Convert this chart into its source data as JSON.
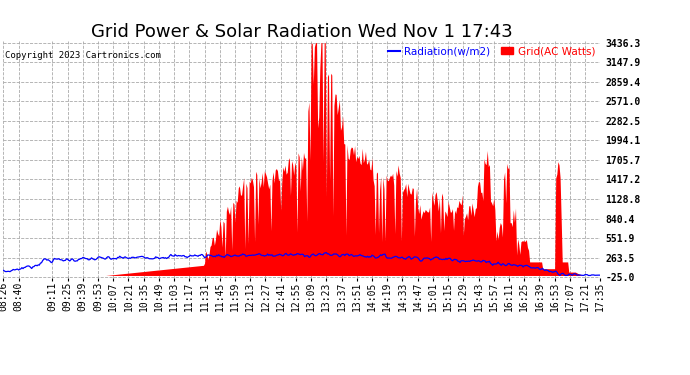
{
  "title": "Grid Power & Solar Radiation Wed Nov 1 17:43",
  "copyright": "Copyright 2023 Cartronics.com",
  "legend_radiation": "Radiation(w/m2)",
  "legend_grid": "Grid(AC Watts)",
  "yticks": [
    3436.3,
    3147.9,
    2859.4,
    2571.0,
    2282.5,
    1994.1,
    1705.7,
    1417.2,
    1128.8,
    840.4,
    551.9,
    263.5,
    -25.0
  ],
  "ymin": -25.0,
  "ymax": 3436.3,
  "radiation_color": "blue",
  "grid_color": "red",
  "background_color": "#ffffff",
  "grid_line_color": "#aaaaaa",
  "title_fontsize": 13,
  "tick_fontsize": 7,
  "xtick_labels": [
    "08:26",
    "08:40",
    "09:11",
    "09:25",
    "09:39",
    "09:53",
    "10:07",
    "10:21",
    "10:35",
    "10:49",
    "11:03",
    "11:17",
    "11:31",
    "11:45",
    "11:59",
    "12:13",
    "12:27",
    "12:41",
    "12:55",
    "13:09",
    "13:23",
    "13:37",
    "13:51",
    "14:05",
    "14:19",
    "14:33",
    "14:47",
    "15:01",
    "15:15",
    "15:29",
    "15:43",
    "15:57",
    "16:11",
    "16:25",
    "16:39",
    "16:53",
    "17:07",
    "17:21",
    "17:35"
  ]
}
